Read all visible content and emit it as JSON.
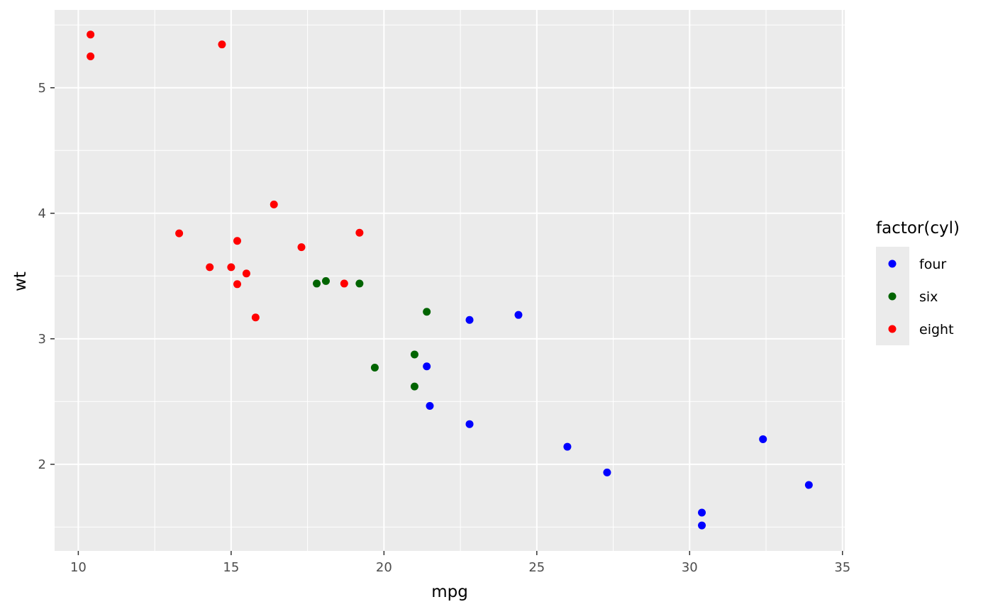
{
  "chart_data": {
    "type": "scatter",
    "title": "",
    "xlabel": "mpg",
    "ylabel": "wt",
    "xlim": [
      9.225,
      35.075
    ],
    "ylim": [
      1.31,
      5.62
    ],
    "x_ticks": [
      10,
      15,
      20,
      25,
      30,
      35
    ],
    "x_tick_labels": [
      "10",
      "15",
      "20",
      "25",
      "30",
      "35"
    ],
    "y_ticks": [
      2,
      3,
      4,
      5
    ],
    "y_tick_labels": [
      "2",
      "3",
      "4",
      "5"
    ],
    "grid": true,
    "legend": {
      "title": "factor(cyl)",
      "position": "right"
    },
    "series": [
      {
        "name": "four",
        "color": "#0000FF",
        "x": [
          22.8,
          24.4,
          22.8,
          32.4,
          30.4,
          33.9,
          21.5,
          27.3,
          26.0,
          30.4,
          21.4
        ],
        "y": [
          2.32,
          3.19,
          3.15,
          2.2,
          1.615,
          1.835,
          2.465,
          1.935,
          2.14,
          1.513,
          2.78
        ]
      },
      {
        "name": "six",
        "color": "#006400",
        "x": [
          21.0,
          21.0,
          21.4,
          18.1,
          19.2,
          17.8,
          19.7
        ],
        "y": [
          2.62,
          2.875,
          3.215,
          3.46,
          3.44,
          3.44,
          2.77
        ]
      },
      {
        "name": "eight",
        "color": "#FF0000",
        "x": [
          18.7,
          14.3,
          16.4,
          17.3,
          15.2,
          10.4,
          10.4,
          14.7,
          15.5,
          15.2,
          13.3,
          19.2,
          15.8,
          15.0
        ],
        "y": [
          3.44,
          3.57,
          4.07,
          3.73,
          3.78,
          5.25,
          5.424,
          5.345,
          3.52,
          3.435,
          3.84,
          3.845,
          3.17,
          3.57
        ]
      }
    ]
  }
}
